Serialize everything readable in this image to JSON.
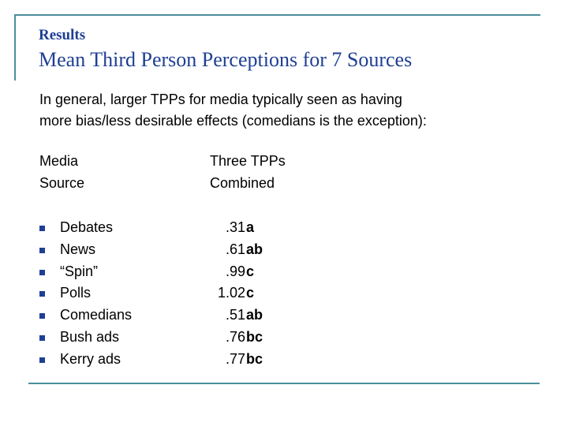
{
  "slide": {
    "title_small": "Results",
    "title_main": "Mean Third Person Perceptions for 7 Sources",
    "intro_line1": "In general, larger TPPs for media typically seen as having",
    "intro_line2": "more bias/less desirable effects (comedians is the exception):",
    "header": {
      "col1_line1": "Media",
      "col1_line2": "Source",
      "col2_line1": "Three TPPs",
      "col2_line2": "Combined"
    },
    "rows": [
      {
        "name": "Debates",
        "value": ".31",
        "group": "a"
      },
      {
        "name": "News",
        "value": ".61",
        "group": "ab"
      },
      {
        "name": "“Spin”",
        "value": ".99",
        "group": "c"
      },
      {
        "name": "Polls",
        "value": "1.02",
        "group": "c"
      },
      {
        "name": "Comedians",
        "value": ".51",
        "group": "ab"
      },
      {
        "name": "Bush ads",
        "value": ".76",
        "group": "bc"
      },
      {
        "name": "Kerry ads",
        "value": ".77",
        "group": "bc"
      }
    ],
    "colors": {
      "title": "#1f3f94",
      "frame": "#4a8f9a",
      "bullet": "#1f3f94"
    }
  }
}
